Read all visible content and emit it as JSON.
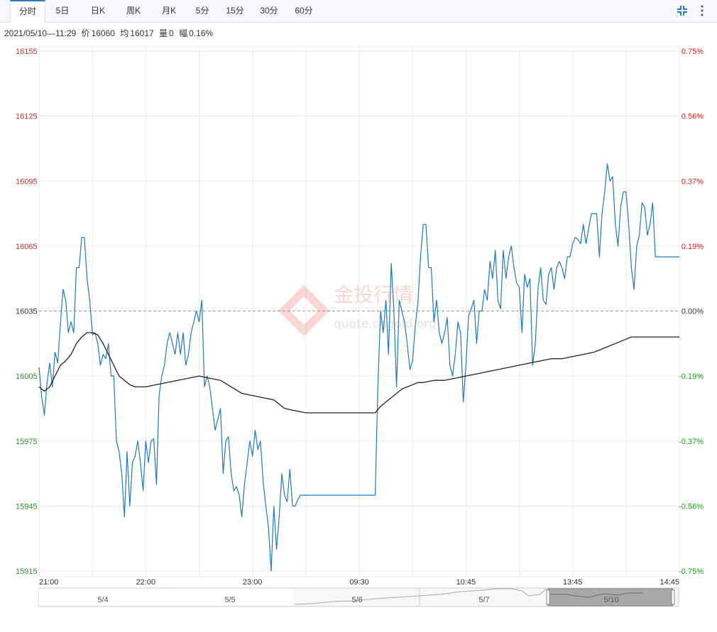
{
  "toolbar": {
    "tabs": [
      "分时",
      "5日",
      "日K",
      "周K",
      "月K",
      "5分",
      "15分",
      "30分",
      "60分"
    ],
    "active_tab": 0,
    "icons": [
      "collapse-icon",
      "more-vertical-icon"
    ]
  },
  "info": {
    "time": "2021/05/10—11:29",
    "price_label": "价",
    "price": "16060",
    "avg_label": "均",
    "avg": "16017",
    "vol_label": "量",
    "vol": "0",
    "chg_label": "幅",
    "chg": "0.16%"
  },
  "watermark": {
    "line1": "金投行情",
    "line2": "quote.cngold.org"
  },
  "colors": {
    "up": "#e6231f",
    "down": "#1b9c1b",
    "neutral": "#333333",
    "price_line": "#1f78c1",
    "avg_line": "#222222",
    "grid": "#eaeaea",
    "base_line": "#999999"
  },
  "chart_data": {
    "type": "line",
    "title": "",
    "y_ticks_left": [
      "16155",
      "16125",
      "16095",
      "16065",
      "16035",
      "16005",
      "15975",
      "15945",
      "15915"
    ],
    "y_ticks_right": [
      "0.75%",
      "0.56%",
      "0.37%",
      "0.19%",
      "0.00%",
      "-0.19%",
      "-0.37%",
      "-0.56%",
      "-0.75%"
    ],
    "y_colors": [
      "up",
      "up",
      "up",
      "up",
      "neutral",
      "down",
      "down",
      "down",
      "down"
    ],
    "ylim": [
      15915,
      16155
    ],
    "base_value": 16035,
    "x_tick_labels": [
      "21:00",
      "22:00",
      "23:00",
      "09:30",
      "10:45",
      "13:45",
      "14:45"
    ],
    "x_range": [
      0,
      240
    ],
    "navigator_days": [
      "5/4",
      "5/5",
      "5/6",
      "5/7",
      "5/10"
    ],
    "series": [
      {
        "name": "价",
        "points": [
          [
            0,
            16009
          ],
          [
            1,
            15995
          ],
          [
            2,
            15987
          ],
          [
            3,
            16002
          ],
          [
            4,
            16011
          ],
          [
            5,
            16000
          ],
          [
            6,
            16016
          ],
          [
            7,
            16011
          ],
          [
            8,
            16029
          ],
          [
            9,
            16045
          ],
          [
            10,
            16040
          ],
          [
            11,
            16025
          ],
          [
            12,
            16030
          ],
          [
            13,
            16025
          ],
          [
            14,
            16055
          ],
          [
            15,
            16055
          ],
          [
            16,
            16069
          ],
          [
            17,
            16069
          ],
          [
            18,
            16050
          ],
          [
            19,
            16040
          ],
          [
            20,
            16024
          ],
          [
            21,
            16025
          ],
          [
            22,
            16020
          ],
          [
            23,
            16010
          ],
          [
            24,
            16015
          ],
          [
            25,
            16013
          ],
          [
            26,
            16020
          ],
          [
            27,
            16005
          ],
          [
            28,
            16005
          ],
          [
            29,
            15975
          ],
          [
            30,
            15970
          ],
          [
            31,
            15960
          ],
          [
            32,
            15940
          ],
          [
            33,
            15970
          ],
          [
            34,
            15945
          ],
          [
            35,
            15965
          ],
          [
            36,
            15968
          ],
          [
            37,
            15975
          ],
          [
            38,
            15965
          ],
          [
            39,
            15952
          ],
          [
            40,
            15975
          ],
          [
            41,
            15965
          ],
          [
            42,
            15975
          ],
          [
            43,
            15976
          ],
          [
            44,
            15955
          ],
          [
            45,
            15996
          ],
          [
            46,
            16005
          ],
          [
            47,
            16010
          ],
          [
            48,
            16020
          ],
          [
            49,
            16025
          ],
          [
            50,
            16020
          ],
          [
            51,
            16015
          ],
          [
            52,
            16025
          ],
          [
            53,
            16015
          ],
          [
            54,
            16025
          ],
          [
            55,
            16010
          ],
          [
            56,
            16015
          ],
          [
            57,
            16025
          ],
          [
            58,
            16030
          ],
          [
            59,
            16035
          ],
          [
            60,
            16030
          ],
          [
            61,
            16040
          ],
          [
            62,
            16000
          ],
          [
            63,
            16005
          ],
          [
            64,
            16000
          ],
          [
            65,
            15990
          ],
          [
            66,
            15980
          ],
          [
            67,
            15985
          ],
          [
            68,
            15990
          ],
          [
            69,
            15960
          ],
          [
            70,
            15975
          ],
          [
            71,
            15977
          ],
          [
            72,
            15960
          ],
          [
            73,
            15952
          ],
          [
            74,
            15954
          ],
          [
            75,
            15950
          ],
          [
            76,
            15940
          ],
          [
            77,
            15955
          ],
          [
            78,
            15965
          ],
          [
            79,
            15975
          ],
          [
            80,
            15968
          ],
          [
            81,
            15980
          ],
          [
            82,
            15971
          ],
          [
            83,
            15975
          ],
          [
            84,
            15956
          ],
          [
            85,
            15945
          ],
          [
            86,
            15935
          ],
          [
            87,
            15915
          ],
          [
            88,
            15945
          ],
          [
            89,
            15925
          ],
          [
            90,
            15940
          ],
          [
            91,
            15960
          ],
          [
            92,
            15950
          ],
          [
            93,
            15947
          ],
          [
            94,
            15962
          ],
          [
            95,
            15945
          ],
          [
            96,
            15945
          ],
          [
            97,
            15948
          ],
          [
            98,
            15950
          ],
          [
            99,
            15950
          ],
          [
            100,
            15950
          ],
          [
            106,
            15950
          ],
          [
            112,
            15950
          ],
          [
            118,
            15950
          ],
          [
            124,
            15950
          ],
          [
            126,
            15950
          ],
          [
            127,
            16000
          ],
          [
            128,
            16035
          ],
          [
            129,
            16025
          ],
          [
            130,
            16040
          ],
          [
            131,
            16015
          ],
          [
            132,
            16057
          ],
          [
            133,
            16035
          ],
          [
            134,
            16000
          ],
          [
            135,
            16040
          ],
          [
            136,
            16035
          ],
          [
            137,
            16030
          ],
          [
            138,
            16020
          ],
          [
            139,
            16008
          ],
          [
            140,
            16012
          ],
          [
            141,
            16028
          ],
          [
            142,
            16039
          ],
          [
            143,
            16060
          ],
          [
            144,
            16075
          ],
          [
            145,
            16075
          ],
          [
            146,
            16055
          ],
          [
            147,
            16055
          ],
          [
            148,
            16030
          ],
          [
            149,
            16040
          ],
          [
            150,
            16025
          ],
          [
            151,
            16020
          ],
          [
            152,
            16025
          ],
          [
            153,
            16032
          ],
          [
            154,
            16010
          ],
          [
            155,
            16005
          ],
          [
            156,
            16015
          ],
          [
            157,
            16030
          ],
          [
            158,
            16025
          ],
          [
            159,
            15993
          ],
          [
            160,
            16010
          ],
          [
            161,
            16033
          ],
          [
            162,
            16036
          ],
          [
            163,
            16040
          ],
          [
            164,
            16020
          ],
          [
            165,
            16035
          ],
          [
            166,
            16035
          ],
          [
            167,
            16045
          ],
          [
            168,
            16040
          ],
          [
            169,
            16058
          ],
          [
            170,
            16050
          ],
          [
            171,
            16063
          ],
          [
            172,
            16040
          ],
          [
            173,
            16036
          ],
          [
            174,
            16063
          ],
          [
            175,
            16050
          ],
          [
            176,
            16060
          ],
          [
            177,
            16065
          ],
          [
            178,
            16055
          ],
          [
            179,
            16048
          ],
          [
            180,
            16046
          ],
          [
            181,
            16025
          ],
          [
            182,
            16052
          ],
          [
            183,
            16046
          ],
          [
            184,
            16050
          ],
          [
            185,
            16010
          ],
          [
            186,
            16020
          ],
          [
            187,
            16045
          ],
          [
            188,
            16055
          ],
          [
            189,
            16040
          ],
          [
            190,
            16038
          ],
          [
            191,
            16052
          ],
          [
            192,
            16055
          ],
          [
            193,
            16045
          ],
          [
            194,
            16055
          ],
          [
            195,
            16058
          ],
          [
            196,
            16055
          ],
          [
            197,
            16050
          ],
          [
            198,
            16060
          ],
          [
            199,
            16060
          ],
          [
            200,
            16066
          ],
          [
            201,
            16069
          ],
          [
            202,
            16068
          ],
          [
            203,
            16066
          ],
          [
            204,
            16075
          ],
          [
            205,
            16066
          ],
          [
            206,
            16073
          ],
          [
            207,
            16080
          ],
          [
            208,
            16080
          ],
          [
            209,
            16080
          ],
          [
            210,
            16060
          ],
          [
            211,
            16080
          ],
          [
            212,
            16090
          ],
          [
            213,
            16103
          ],
          [
            214,
            16095
          ],
          [
            215,
            16097
          ],
          [
            216,
            16075
          ],
          [
            217,
            16065
          ],
          [
            218,
            16083
          ],
          [
            219,
            16090
          ],
          [
            220,
            16090
          ],
          [
            221,
            16075
          ],
          [
            222,
            16055
          ],
          [
            223,
            16045
          ],
          [
            224,
            16065
          ],
          [
            225,
            16070
          ],
          [
            226,
            16085
          ],
          [
            227,
            16083
          ],
          [
            228,
            16070
          ],
          [
            229,
            16075
          ],
          [
            230,
            16085
          ],
          [
            231,
            16060
          ],
          [
            232,
            16060
          ],
          [
            235,
            16060
          ],
          [
            238,
            16060
          ],
          [
            240,
            16060
          ]
        ]
      },
      {
        "name": "均",
        "points": [
          [
            0,
            16000
          ],
          [
            2,
            15998
          ],
          [
            4,
            16000
          ],
          [
            6,
            16005
          ],
          [
            8,
            16010
          ],
          [
            10,
            16012
          ],
          [
            12,
            16015
          ],
          [
            14,
            16020
          ],
          [
            16,
            16023
          ],
          [
            18,
            16025
          ],
          [
            20,
            16025
          ],
          [
            22,
            16024
          ],
          [
            24,
            16020
          ],
          [
            26,
            16015
          ],
          [
            28,
            16010
          ],
          [
            30,
            16005
          ],
          [
            32,
            16003
          ],
          [
            34,
            16001
          ],
          [
            36,
            16000
          ],
          [
            38,
            16000
          ],
          [
            40,
            16000
          ],
          [
            44,
            16001
          ],
          [
            48,
            16002
          ],
          [
            52,
            16003
          ],
          [
            56,
            16004
          ],
          [
            60,
            16005
          ],
          [
            64,
            16004
          ],
          [
            68,
            16003
          ],
          [
            72,
            16000
          ],
          [
            76,
            15997
          ],
          [
            80,
            15996
          ],
          [
            84,
            15995
          ],
          [
            88,
            15994
          ],
          [
            92,
            15990
          ],
          [
            96,
            15989
          ],
          [
            100,
            15988
          ],
          [
            104,
            15988
          ],
          [
            110,
            15988
          ],
          [
            116,
            15988
          ],
          [
            122,
            15988
          ],
          [
            126,
            15988
          ],
          [
            128,
            15991
          ],
          [
            130,
            15993
          ],
          [
            132,
            15995
          ],
          [
            134,
            15997
          ],
          [
            136,
            15999
          ],
          [
            138,
            16000
          ],
          [
            140,
            16001
          ],
          [
            142,
            16002
          ],
          [
            144,
            16002
          ],
          [
            148,
            16003
          ],
          [
            152,
            16003
          ],
          [
            156,
            16004
          ],
          [
            160,
            16005
          ],
          [
            164,
            16006
          ],
          [
            168,
            16007
          ],
          [
            172,
            16008
          ],
          [
            176,
            16009
          ],
          [
            180,
            16010
          ],
          [
            184,
            16011
          ],
          [
            188,
            16012
          ],
          [
            192,
            16013
          ],
          [
            196,
            16013
          ],
          [
            200,
            16014
          ],
          [
            204,
            16015
          ],
          [
            208,
            16016
          ],
          [
            210,
            16017
          ],
          [
            212,
            16018
          ],
          [
            214,
            16019
          ],
          [
            216,
            16020
          ],
          [
            218,
            16021
          ],
          [
            220,
            16022
          ],
          [
            222,
            16023
          ],
          [
            224,
            16023
          ],
          [
            226,
            16023
          ],
          [
            230,
            16023
          ],
          [
            235,
            16023
          ],
          [
            240,
            16023
          ]
        ]
      }
    ]
  }
}
